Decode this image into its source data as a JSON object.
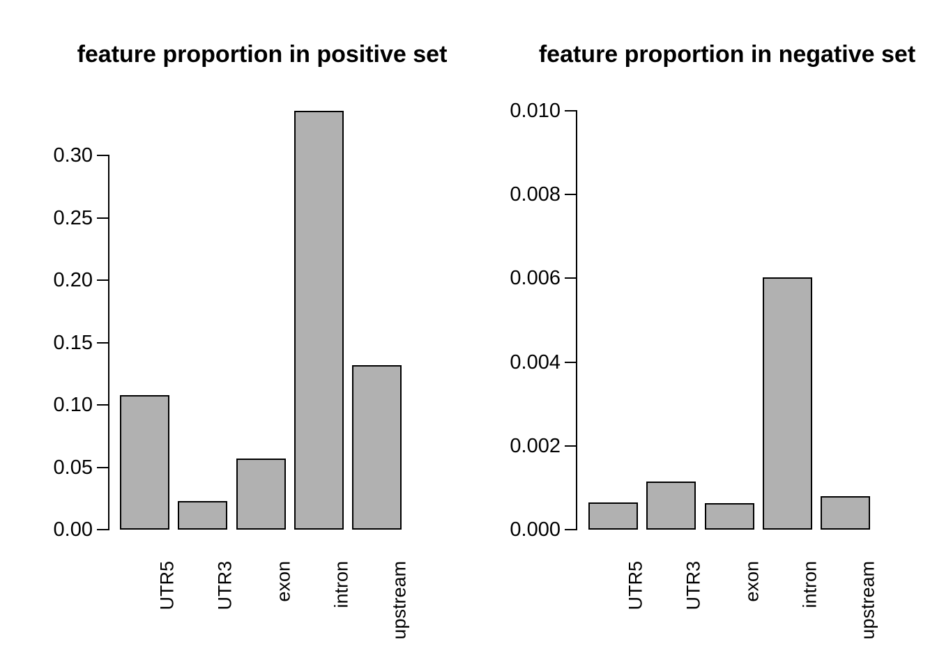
{
  "page": {
    "background": "#ffffff",
    "text_color": "#000000"
  },
  "chart_data": [
    {
      "type": "bar",
      "title": "feature proportion in positive set",
      "categories": [
        "UTR5",
        "UTR3",
        "exon",
        "intron",
        "upstream"
      ],
      "values": [
        0.108,
        0.023,
        0.057,
        0.336,
        0.132
      ],
      "xlabel": "",
      "ylabel": "",
      "ylim": [
        0,
        0.3
      ],
      "yticks": [
        0,
        0.05,
        0.1,
        0.15,
        0.2,
        0.25,
        0.3
      ],
      "ytick_labels": [
        "0.00",
        "0.05",
        "0.10",
        "0.15",
        "0.20",
        "0.25",
        "0.30"
      ],
      "grid": false,
      "legend": null,
      "x_labels_rotated": true,
      "bar_fill": "#b1b1b1",
      "bar_border": "#000000",
      "axis_color": "#000000"
    },
    {
      "type": "bar",
      "title": "feature proportion in negative set",
      "categories": [
        "UTR5",
        "UTR3",
        "exon",
        "intron",
        "upstream"
      ],
      "values": [
        0.00065,
        0.00115,
        0.00063,
        0.00602,
        0.0008
      ],
      "xlabel": "",
      "ylabel": "",
      "ylim": [
        0,
        0.01
      ],
      "yticks": [
        0,
        0.002,
        0.004,
        0.006,
        0.008,
        0.01
      ],
      "ytick_labels": [
        "0.000",
        "0.002",
        "0.004",
        "0.006",
        "0.008",
        "0.010"
      ],
      "grid": false,
      "legend": null,
      "x_labels_rotated": true,
      "bar_fill": "#b1b1b1",
      "bar_border": "#000000",
      "axis_color": "#000000"
    }
  ]
}
